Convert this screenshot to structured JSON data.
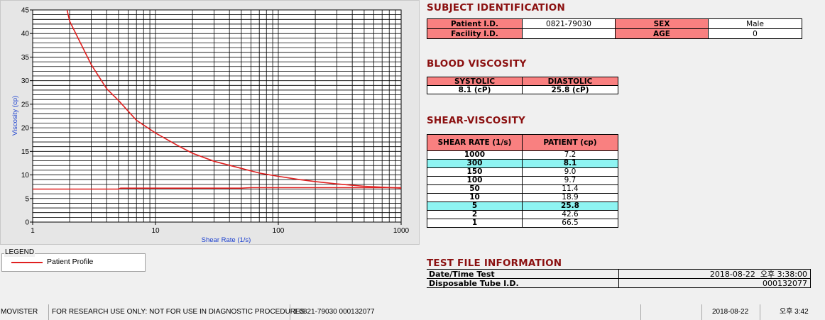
{
  "chart_data": {
    "type": "line",
    "title": "",
    "xlabel": "Shear Rate (1/s)",
    "ylabel": "Viscosity (cp)",
    "x_scale": "log",
    "xlim": [
      1,
      1000
    ],
    "ylim": [
      0,
      45
    ],
    "x_ticks": [
      "1",
      "10",
      "100",
      "1000"
    ],
    "y_ticks": [
      "0",
      "5",
      "10",
      "15",
      "20",
      "25",
      "30",
      "35",
      "40",
      "45"
    ],
    "grid": true,
    "series": [
      {
        "name": "Patient Profile",
        "color": "#e02020",
        "x": [
          1.9,
          2,
          3,
          4,
          5,
          7,
          10,
          15,
          20,
          30,
          50,
          70,
          100,
          150,
          200,
          300,
          500,
          700,
          1000
        ],
        "y": [
          45.2,
          42.6,
          33.4,
          28.3,
          25.8,
          21.6,
          18.9,
          16.3,
          14.6,
          12.9,
          11.4,
          10.4,
          9.7,
          9.0,
          8.6,
          8.1,
          7.6,
          7.4,
          7.2
        ]
      },
      {
        "name": "",
        "color": "#e02020",
        "x": [
          1,
          5,
          5.2,
          50,
          60,
          1000
        ],
        "y": [
          7.0,
          7.0,
          7.2,
          7.2,
          7.3,
          7.3
        ]
      }
    ]
  },
  "legend": {
    "title": "LEGEND",
    "entries": [
      {
        "label": "Patient Profile",
        "color": "#e02020"
      }
    ]
  },
  "subject": {
    "title": "SUBJECT IDENTIFICATION",
    "patient_id_label": "Patient I.D.",
    "patient_id_value": "0821-79030",
    "sex_label": "SEX",
    "sex_value": "Male",
    "facility_id_label": "Facility I.D.",
    "facility_id_value": "",
    "age_label": "AGE",
    "age_value": "0"
  },
  "blood": {
    "title": "BLOOD VISCOSITY",
    "systolic_label": "SYSTOLIC",
    "diastolic_label": "DIASTOLIC",
    "systolic_value": "8.1 (cP)",
    "diastolic_value": "25.8 (cP)"
  },
  "shear": {
    "title": "SHEAR-VISCOSITY",
    "col1": "SHEAR RATE (1/s)",
    "col2": "PATIENT (cp)",
    "rows": [
      {
        "rate": "1000",
        "value": "7.2",
        "highlight": false
      },
      {
        "rate": "300",
        "value": "8.1",
        "highlight": true
      },
      {
        "rate": "150",
        "value": "9.0",
        "highlight": false
      },
      {
        "rate": "100",
        "value": "9.7",
        "highlight": false
      },
      {
        "rate": "50",
        "value": "11.4",
        "highlight": false
      },
      {
        "rate": "10",
        "value": "18.9",
        "highlight": false
      },
      {
        "rate": "5",
        "value": "25.8",
        "highlight": true
      },
      {
        "rate": "2",
        "value": "42.6",
        "highlight": false
      },
      {
        "rate": "1",
        "value": "66.5",
        "highlight": false
      }
    ]
  },
  "file": {
    "title": "TEST FILE INFORMATION",
    "datetime_label": "Date/Time Test",
    "date_value": "2018-08-22",
    "time_value": "오후 3:38:00",
    "tube_label": "Disposable Tube I.D.",
    "tube_value": "000132077"
  },
  "status": {
    "app": "MOVISTER",
    "notice": "FOR RESEARCH USE ONLY: NOT FOR USE IN DIAGNOSTIC PROCEDURES",
    "file_info": "1  0821-79030  000132077",
    "extra": "",
    "date": "2018-08-22",
    "time": "오후 3:42"
  },
  "colors": {
    "header_bg": "#f98080",
    "highlight_bg": "#8ef4f2",
    "title_color": "#8b1010",
    "curve": "#e02020"
  }
}
